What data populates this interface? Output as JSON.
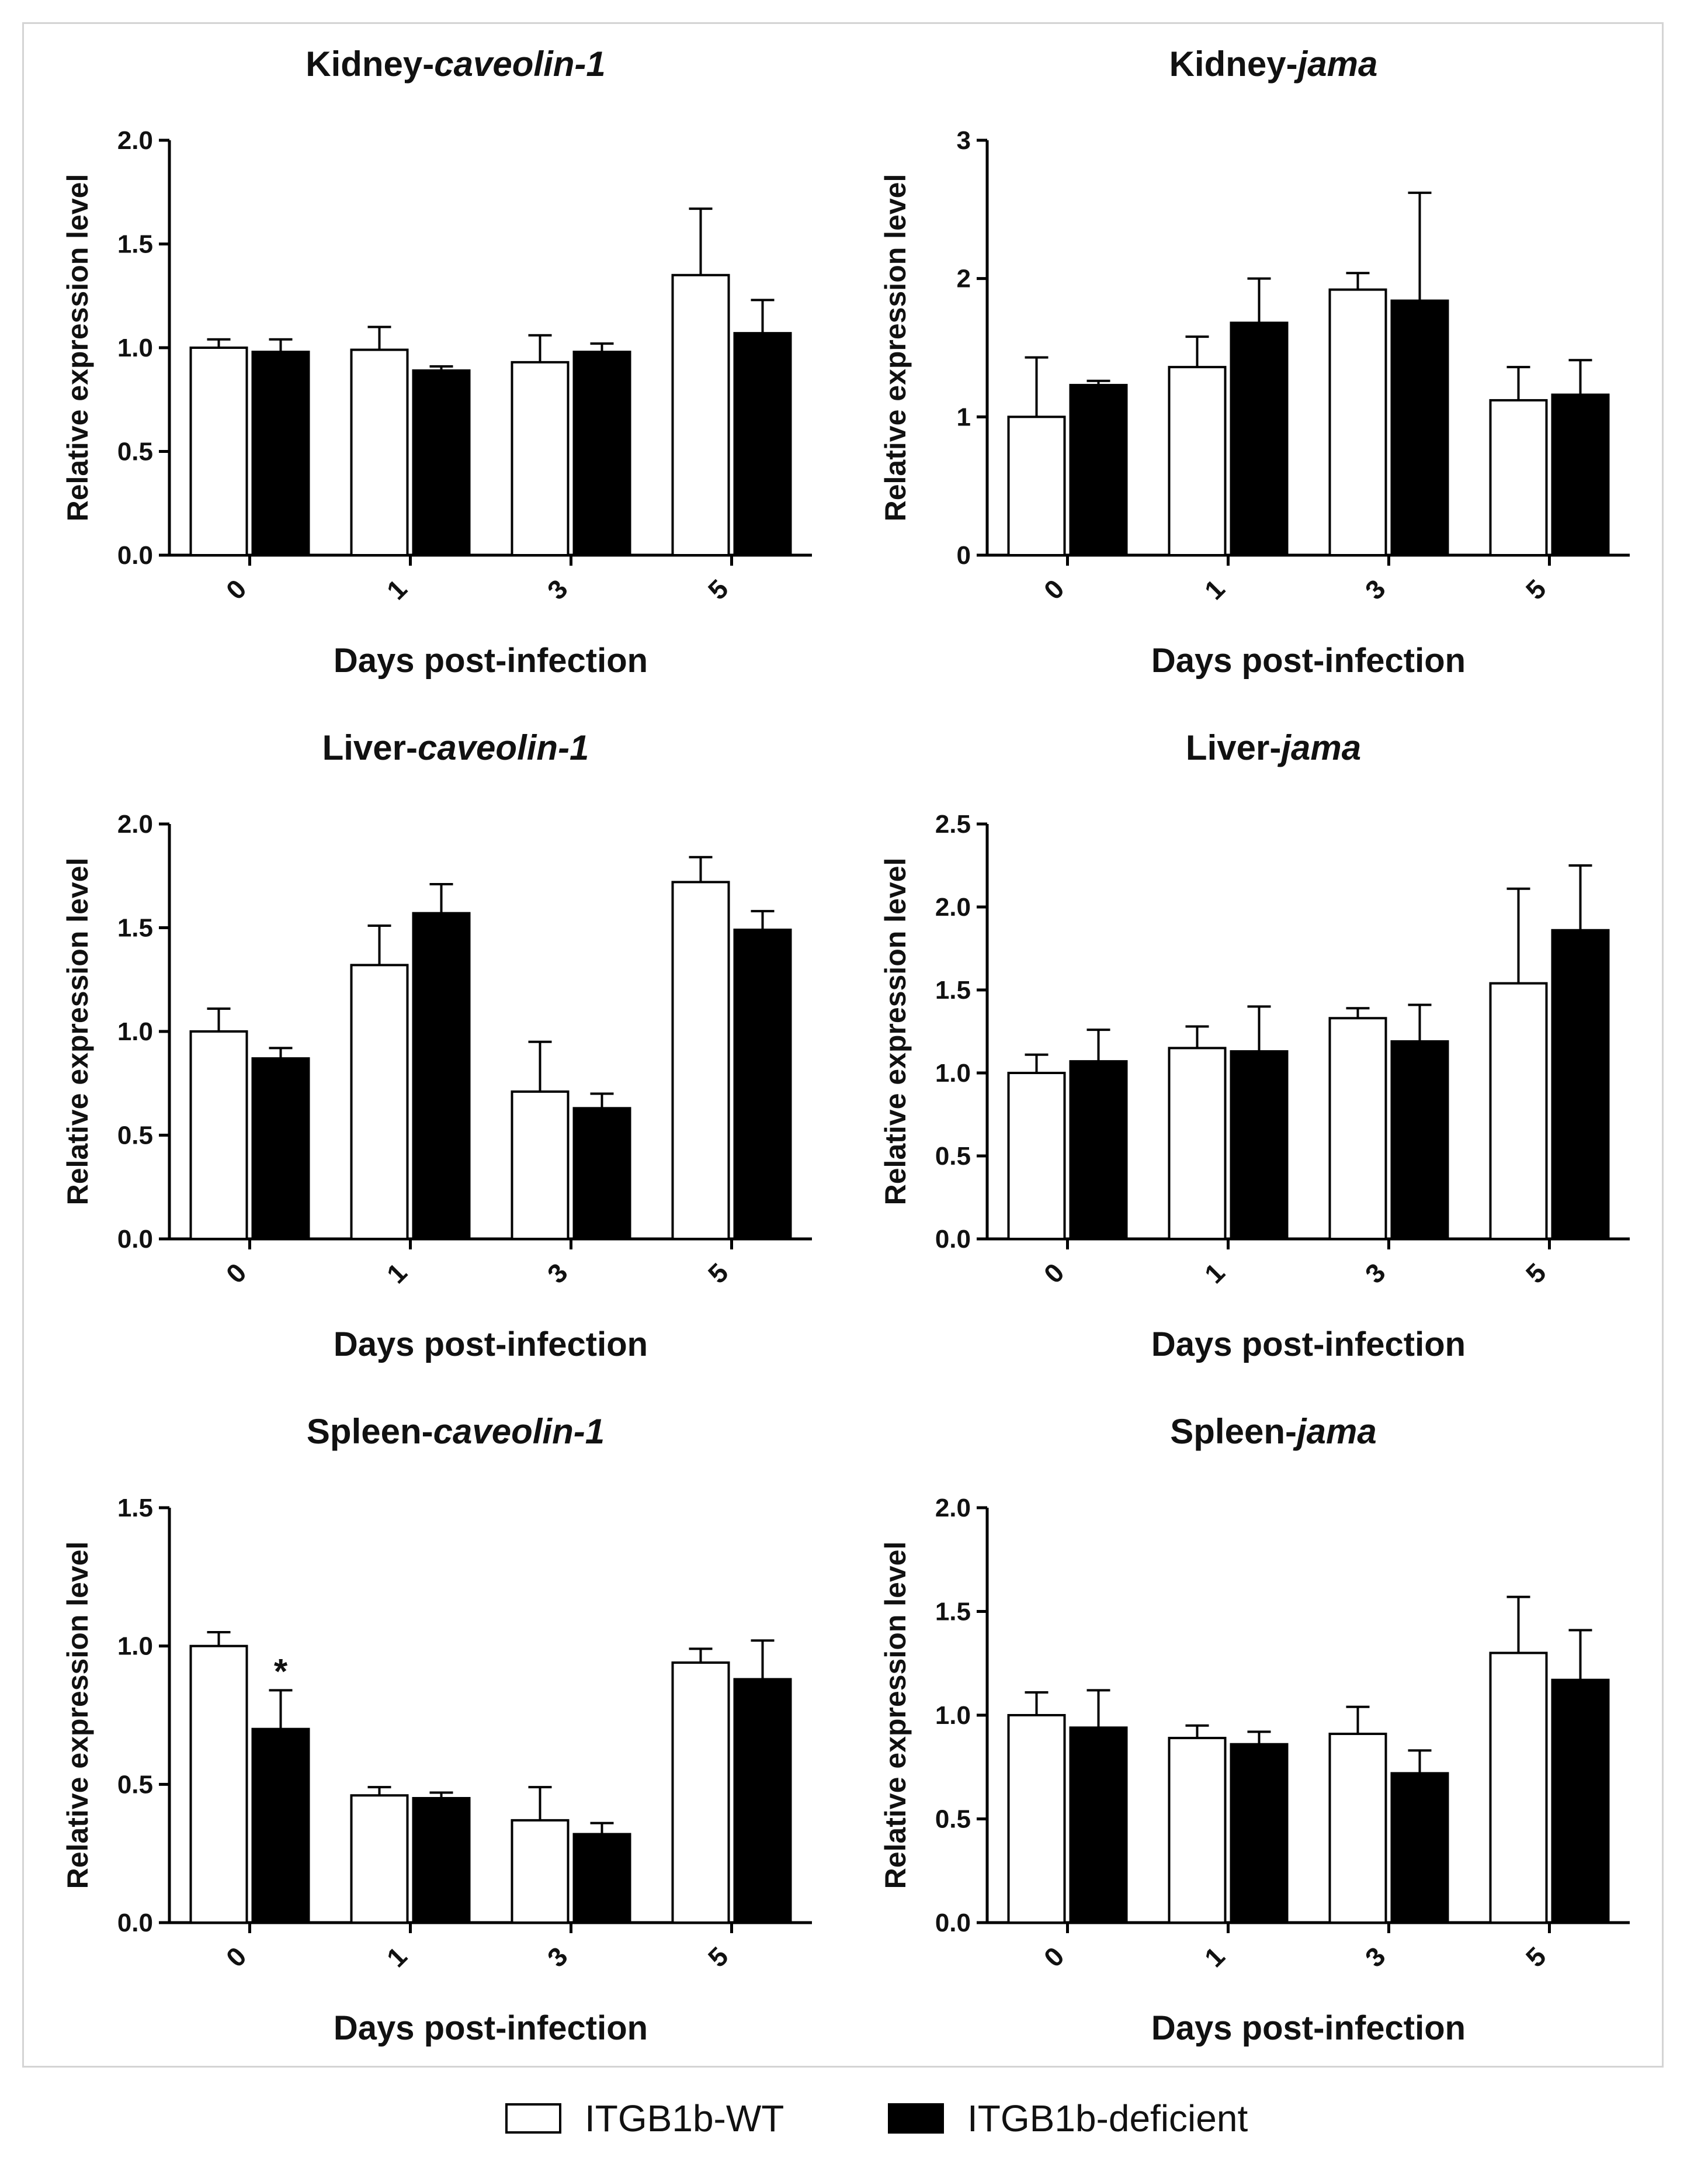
{
  "legend": {
    "wt_label": "ITGB1b-WT",
    "def_label": "ITGB1b-deficient",
    "wt_color": "#ffffff",
    "def_color": "#000000"
  },
  "chart_data": [
    {
      "type": "bar",
      "title_prefix": "Kidney-",
      "title_gene": "caveolin-1",
      "xlabel": "Days post-infection",
      "ylabel": "Relative expression level",
      "categories": [
        "0",
        "1",
        "3",
        "5"
      ],
      "ylim": [
        0,
        2.0
      ],
      "yticks": [
        "0.0",
        "0.5",
        "1.0",
        "1.5",
        "2.0"
      ],
      "series": [
        {
          "name": "ITGB1b-WT",
          "values": [
            1.0,
            0.99,
            0.93,
            1.35
          ],
          "errors": [
            0.04,
            0.11,
            0.13,
            0.32
          ]
        },
        {
          "name": "ITGB1b-deficient",
          "values": [
            0.98,
            0.89,
            0.98,
            1.07
          ],
          "errors": [
            0.06,
            0.02,
            0.04,
            0.16
          ]
        }
      ],
      "annotations": []
    },
    {
      "type": "bar",
      "title_prefix": "Kidney-",
      "title_gene": "jama",
      "xlabel": "Days post-infection",
      "ylabel": "Relative expression level",
      "categories": [
        "0",
        "1",
        "3",
        "5"
      ],
      "ylim": [
        0,
        3
      ],
      "yticks": [
        "0",
        "1",
        "2",
        "3"
      ],
      "series": [
        {
          "name": "ITGB1b-WT",
          "values": [
            1.0,
            1.36,
            1.92,
            1.12
          ],
          "errors": [
            0.43,
            0.22,
            0.12,
            0.24
          ]
        },
        {
          "name": "ITGB1b-deficient",
          "values": [
            1.23,
            1.68,
            1.84,
            1.16
          ],
          "errors": [
            0.03,
            0.32,
            0.78,
            0.25
          ]
        }
      ],
      "annotations": []
    },
    {
      "type": "bar",
      "title_prefix": "Liver-",
      "title_gene": "caveolin-1",
      "xlabel": "Days post-infection",
      "ylabel": "Relative expression level",
      "categories": [
        "0",
        "1",
        "3",
        "5"
      ],
      "ylim": [
        0,
        2.0
      ],
      "yticks": [
        "0.0",
        "0.5",
        "1.0",
        "1.5",
        "2.0"
      ],
      "series": [
        {
          "name": "ITGB1b-WT",
          "values": [
            1.0,
            1.32,
            0.71,
            1.72
          ],
          "errors": [
            0.11,
            0.19,
            0.24,
            0.12
          ]
        },
        {
          "name": "ITGB1b-deficient",
          "values": [
            0.87,
            1.57,
            0.63,
            1.49
          ],
          "errors": [
            0.05,
            0.14,
            0.07,
            0.09
          ]
        }
      ],
      "annotations": []
    },
    {
      "type": "bar",
      "title_prefix": "Liver-",
      "title_gene": "jama",
      "xlabel": "Days post-infection",
      "ylabel": "Relative expression level",
      "categories": [
        "0",
        "1",
        "3",
        "5"
      ],
      "ylim": [
        0,
        2.5
      ],
      "yticks": [
        "0.0",
        "0.5",
        "1.0",
        "1.5",
        "2.0",
        "2.5"
      ],
      "series": [
        {
          "name": "ITGB1b-WT",
          "values": [
            1.0,
            1.15,
            1.33,
            1.54
          ],
          "errors": [
            0.11,
            0.13,
            0.06,
            0.57
          ]
        },
        {
          "name": "ITGB1b-deficient",
          "values": [
            1.07,
            1.13,
            1.19,
            1.86
          ],
          "errors": [
            0.19,
            0.27,
            0.22,
            0.39
          ]
        }
      ],
      "annotations": []
    },
    {
      "type": "bar",
      "title_prefix": "Spleen-",
      "title_gene": "caveolin-1",
      "xlabel": "Days post-infection",
      "ylabel": "Relative expression level",
      "categories": [
        "0",
        "1",
        "3",
        "5"
      ],
      "ylim": [
        0,
        1.5
      ],
      "yticks": [
        "0.0",
        "0.5",
        "1.0",
        "1.5"
      ],
      "series": [
        {
          "name": "ITGB1b-WT",
          "values": [
            1.0,
            0.46,
            0.37,
            0.94
          ],
          "errors": [
            0.05,
            0.03,
            0.12,
            0.05
          ]
        },
        {
          "name": "ITGB1b-deficient",
          "values": [
            0.7,
            0.45,
            0.32,
            0.88
          ],
          "errors": [
            0.14,
            0.02,
            0.04,
            0.14
          ]
        }
      ],
      "annotations": [
        {
          "series": 1,
          "category": 0,
          "text": "*"
        }
      ]
    },
    {
      "type": "bar",
      "title_prefix": "Spleen-",
      "title_gene": "jama",
      "xlabel": "Days post-infection",
      "ylabel": "Relative expression level",
      "categories": [
        "0",
        "1",
        "3",
        "5"
      ],
      "ylim": [
        0,
        2.0
      ],
      "yticks": [
        "0.0",
        "0.5",
        "1.0",
        "1.5",
        "2.0"
      ],
      "series": [
        {
          "name": "ITGB1b-WT",
          "values": [
            1.0,
            0.89,
            0.91,
            1.3
          ],
          "errors": [
            0.11,
            0.06,
            0.13,
            0.27
          ]
        },
        {
          "name": "ITGB1b-deficient",
          "values": [
            0.94,
            0.86,
            0.72,
            1.17
          ],
          "errors": [
            0.18,
            0.06,
            0.11,
            0.24
          ]
        }
      ],
      "annotations": []
    }
  ]
}
